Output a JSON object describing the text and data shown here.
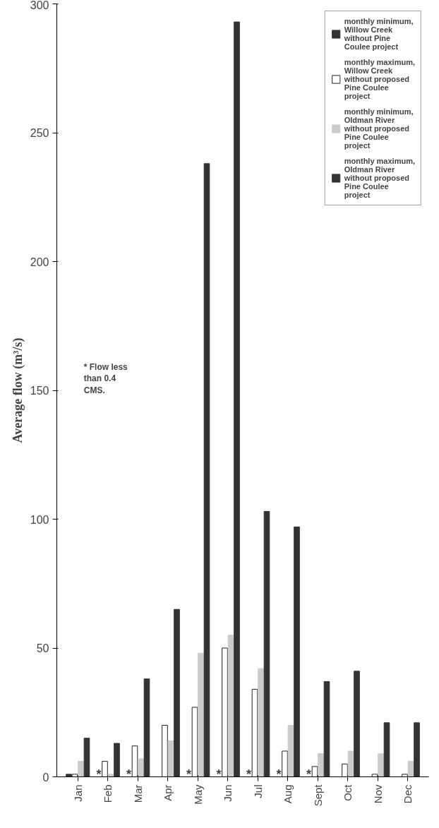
{
  "chart_data": {
    "type": "bar",
    "ylabel": "Average flow (m³/s)",
    "categories": [
      "Jan",
      "Feb",
      "Mar",
      "Apr",
      "May",
      "Jun",
      "Jul",
      "Aug",
      "Sept",
      "Oct",
      "Nov",
      "Dec"
    ],
    "series": [
      {
        "name": "monthly minimum, Willow Creek without Pine Coulee project",
        "color": "#333333",
        "values": [
          1,
          null,
          null,
          0,
          null,
          null,
          null,
          null,
          null,
          0,
          0,
          0
        ]
      },
      {
        "name": "monthly maximum, Willow Creek without proposed Pine Coulee project",
        "color": "#ffffff",
        "values": [
          1,
          6,
          12,
          20,
          27,
          50,
          34,
          10,
          4,
          5,
          1,
          1
        ]
      },
      {
        "name": "monthly minimum, Oldman River without proposed Pine Coulee project",
        "color": "#cccccc",
        "values": [
          6,
          1,
          7,
          14,
          48,
          55,
          42,
          20,
          9,
          10,
          9,
          6
        ]
      },
      {
        "name": "monthly maximum, Oldman River without proposed Pine Coulee project",
        "color": "#333333",
        "values": [
          15,
          13,
          38,
          65,
          238,
          293,
          103,
          97,
          37,
          41,
          21,
          21
        ]
      }
    ],
    "ylim": [
      0,
      300
    ],
    "yticks": [
      0,
      50,
      100,
      150,
      200,
      250,
      300
    ],
    "grid": false,
    "legend": "top right",
    "annotations": [
      "* Flow less than 0.4 CMS.",
      {
        "text": "*",
        "x": "Feb",
        "y": 0
      },
      {
        "text": "*",
        "x": "Mar",
        "y": 0
      },
      {
        "text": "*",
        "x": "May",
        "y": 0
      },
      {
        "text": "*",
        "x": "Jun",
        "y": 0
      },
      {
        "text": "*",
        "x": "Jul",
        "y": 0
      },
      {
        "text": "*",
        "x": "Aug",
        "y": 0
      },
      {
        "text": "*",
        "x": "Sept",
        "y": 0
      }
    ]
  }
}
